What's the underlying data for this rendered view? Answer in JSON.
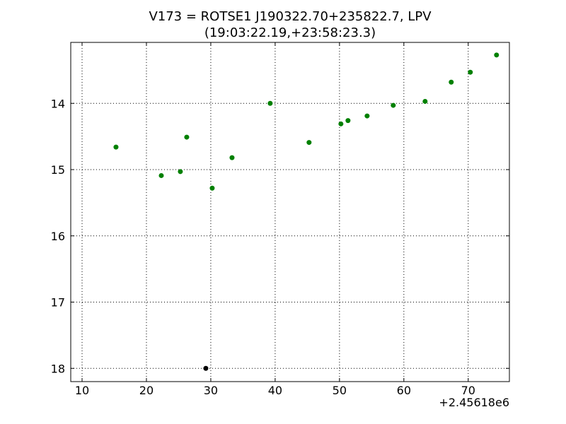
{
  "chart_data": {
    "type": "scatter",
    "title": "V173 = ROTSE1 J190322.70+235822.7, LPV",
    "subtitle": "(19:03:22.19,+23:58:23.3)",
    "x_offset_label": "+2.45618e6",
    "series": [
      {
        "color": "#008000",
        "x": [
          15.27,
          22.31,
          25.27,
          26.26,
          30.22,
          33.3,
          39.23,
          45.27,
          50.22,
          51.32,
          54.29,
          58.35,
          63.3,
          67.36,
          70.33,
          74.4
        ],
        "values": [
          14.66,
          15.09,
          15.03,
          14.51,
          15.28,
          14.82,
          14.0,
          14.59,
          14.31,
          14.26,
          14.19,
          14.03,
          13.97,
          13.68,
          13.53,
          13.27
        ]
      },
      {
        "color": "#000000",
        "x": [
          29.23
        ],
        "values": [
          18.0
        ]
      }
    ],
    "xlim": [
      8.24,
      76.4
    ],
    "xticks": [
      10,
      20,
      30,
      40,
      50,
      60,
      70
    ],
    "ylim": [
      13.08,
      18.2
    ],
    "yticks": [
      14,
      15,
      16,
      17,
      18
    ],
    "y_inverted": true,
    "grid": true
  }
}
